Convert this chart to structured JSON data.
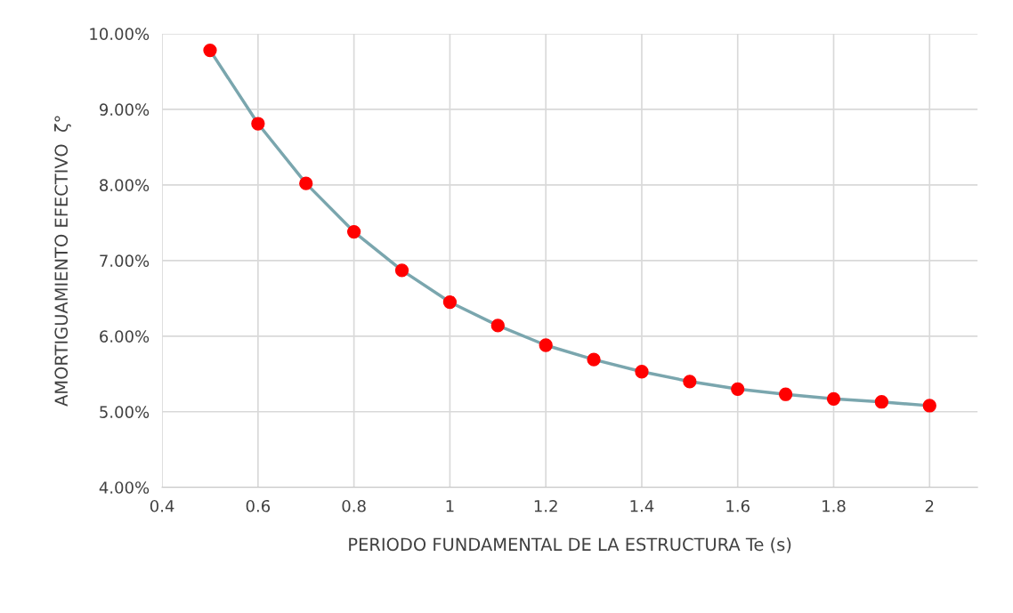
{
  "chart_data": {
    "type": "line",
    "xlabel": "PERIODO FUNDAMENTAL DE LA ESTRUCTURA Te (s)",
    "ylabel": "AMORTIGUAMIENTO EFECTIVO  ζ°",
    "x": [
      0.5,
      0.6,
      0.7,
      0.8,
      0.9,
      1.0,
      1.1,
      1.2,
      1.3,
      1.4,
      1.5,
      1.6,
      1.7,
      1.8,
      1.9,
      2.0
    ],
    "series": [
      {
        "color": "#ff0000",
        "values": [
          9.78,
          8.81,
          8.02,
          7.38,
          6.87,
          6.45,
          6.14,
          5.88,
          5.69,
          5.53,
          5.4,
          5.3,
          5.23,
          5.17,
          5.13,
          5.08
        ]
      }
    ],
    "xlim": [
      0.4,
      2.1
    ],
    "xticks": [
      0.4,
      0.6,
      0.8,
      1,
      1.2,
      1.4,
      1.6,
      1.8,
      2
    ],
    "ylim": [
      4,
      10
    ],
    "yticks": [
      {
        "value": 4,
        "label": "4.00%"
      },
      {
        "value": 5,
        "label": "5.00%"
      },
      {
        "value": 6,
        "label": "6.00%"
      },
      {
        "value": 7,
        "label": "7.00%"
      },
      {
        "value": 8,
        "label": "8.00%"
      },
      {
        "value": 9,
        "label": "9.00%"
      },
      {
        "value": 10,
        "label": "10.00%"
      }
    ],
    "grid": true,
    "marker": "circle",
    "line_style": "solid",
    "legend": false
  }
}
